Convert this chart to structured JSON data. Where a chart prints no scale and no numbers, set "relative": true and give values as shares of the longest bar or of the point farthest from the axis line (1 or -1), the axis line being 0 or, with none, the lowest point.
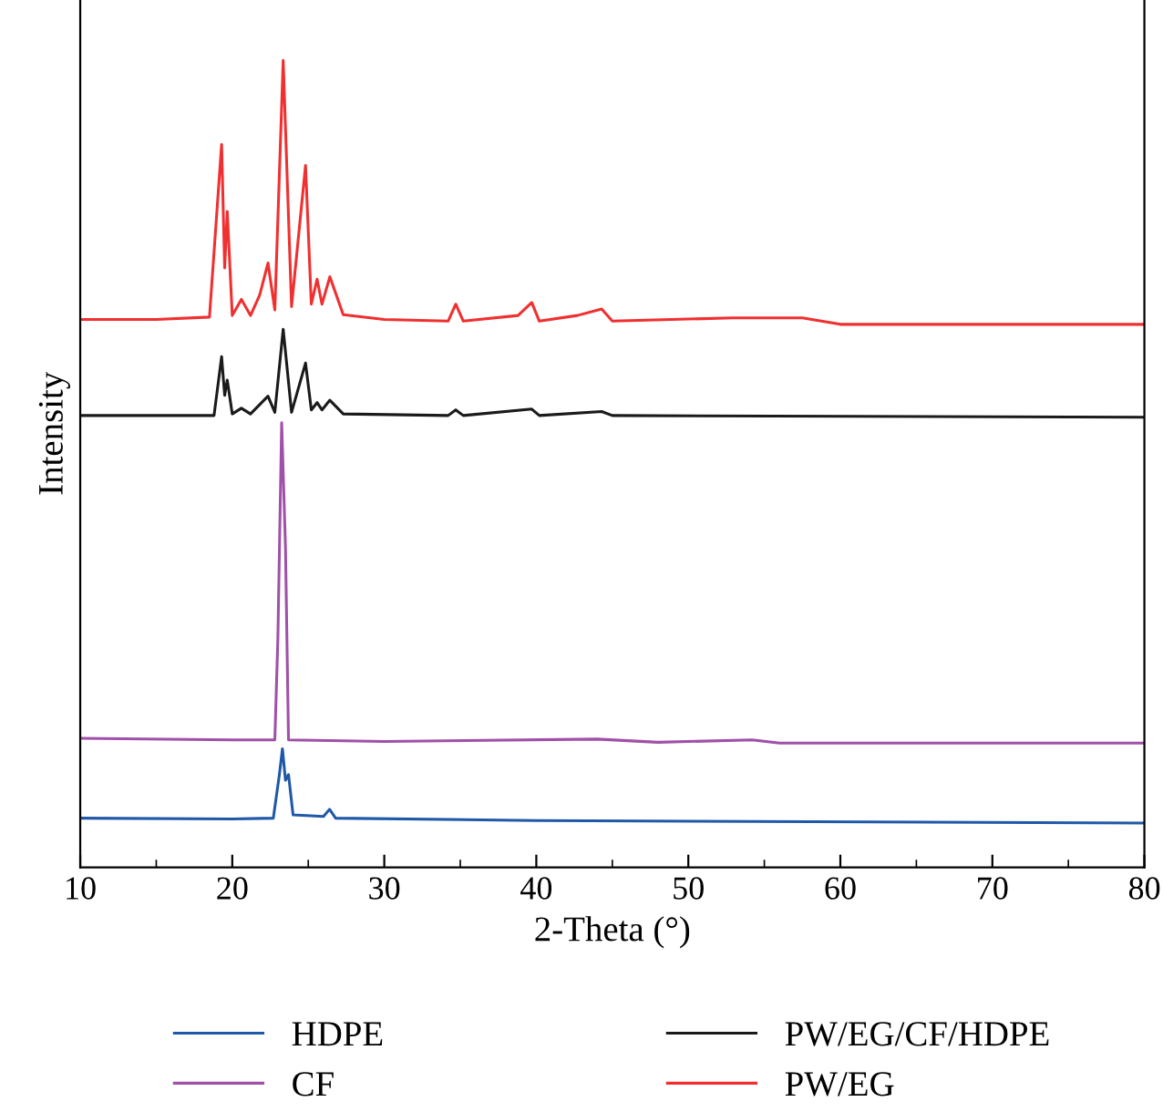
{
  "chart_data": {
    "type": "line",
    "xlabel": "2-Theta (°)",
    "ylabel": "Intensity",
    "relative": true,
    "legend": "bottom",
    "grid": false,
    "marker": "none",
    "line_style": "solid",
    "xlim": [
      10,
      80
    ],
    "xticks": [
      10,
      20,
      30,
      40,
      50,
      60,
      70,
      80
    ],
    "series": [
      {
        "name": "HDPE",
        "color": "#2058a8",
        "x": [
          10,
          20,
          22.7,
          23.1,
          23.3,
          23.5,
          23.7,
          24.0,
          26.0,
          26.4,
          26.8,
          40,
          80
        ],
        "values": [
          0.061,
          0.06,
          0.061,
          0.115,
          0.147,
          0.108,
          0.115,
          0.065,
          0.063,
          0.072,
          0.061,
          0.058,
          0.055
        ]
      },
      {
        "name": "CF",
        "color": "#a050a8",
        "x": [
          10,
          20,
          22.8,
          23.0,
          23.25,
          23.5,
          23.7,
          30,
          44.0,
          48,
          54.2,
          56,
          80
        ],
        "values": [
          0.16,
          0.158,
          0.158,
          0.284,
          0.551,
          0.397,
          0.158,
          0.156,
          0.159,
          0.155,
          0.158,
          0.154,
          0.154
        ]
      },
      {
        "name": "PW/EG/CF/HDPE",
        "color": "#1a1a1a",
        "x": [
          10,
          18.8,
          19.3,
          19.5,
          19.67,
          20.0,
          20.6,
          21.2,
          22.35,
          22.8,
          23.35,
          23.9,
          24.82,
          25.2,
          25.58,
          25.9,
          26.42,
          27.3,
          34.2,
          34.7,
          35.2,
          39.7,
          40.2,
          44.3,
          45,
          80
        ],
        "values": [
          0.56,
          0.56,
          0.633,
          0.585,
          0.604,
          0.562,
          0.569,
          0.562,
          0.584,
          0.564,
          0.667,
          0.564,
          0.625,
          0.567,
          0.576,
          0.567,
          0.579,
          0.562,
          0.56,
          0.567,
          0.56,
          0.568,
          0.56,
          0.565,
          0.56,
          0.558
        ]
      },
      {
        "name": "PW/EG",
        "color": "#f03030",
        "x": [
          10,
          15,
          18.5,
          19.3,
          19.5,
          19.67,
          20.0,
          20.6,
          21.2,
          21.8,
          22.35,
          22.8,
          23.35,
          23.9,
          24.82,
          25.2,
          25.58,
          25.9,
          26.42,
          27.3,
          30,
          34.2,
          34.7,
          35.2,
          38.8,
          39.7,
          40.2,
          42.7,
          44.3,
          45,
          52.9,
          57.5,
          60,
          80
        ],
        "values": [
          0.679,
          0.679,
          0.682,
          0.896,
          0.743,
          0.813,
          0.684,
          0.704,
          0.684,
          0.709,
          0.749,
          0.691,
          1.0,
          0.695,
          0.87,
          0.698,
          0.729,
          0.698,
          0.732,
          0.685,
          0.679,
          0.677,
          0.698,
          0.677,
          0.684,
          0.7,
          0.677,
          0.684,
          0.692,
          0.677,
          0.681,
          0.681,
          0.673,
          0.673
        ]
      }
    ]
  }
}
